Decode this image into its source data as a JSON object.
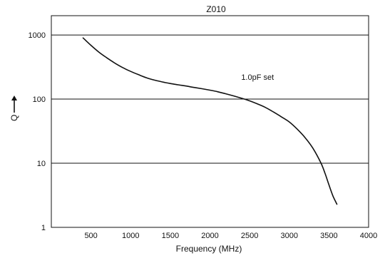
{
  "chart_data": {
    "type": "line",
    "title": "Z010",
    "xlabel": "Frequency (MHz)",
    "ylabel": "Q",
    "xlim": [
      0,
      4000
    ],
    "ylim": [
      1,
      2000
    ],
    "y_scale": "log",
    "grid": "horizontal",
    "x_ticks": [
      {
        "value": 500,
        "label": "500"
      },
      {
        "value": 1000,
        "label": "1000"
      },
      {
        "value": 1500,
        "label": "1500"
      },
      {
        "value": 2000,
        "label": "2000"
      },
      {
        "value": 2500,
        "label": "2500"
      },
      {
        "value": 3000,
        "label": "3000"
      },
      {
        "value": 3500,
        "label": "3500"
      },
      {
        "value": 4000,
        "label": "4000"
      }
    ],
    "y_ticks": [
      {
        "value": 1,
        "label": "1"
      },
      {
        "value": 10,
        "label": "10"
      },
      {
        "value": 100,
        "label": "100"
      },
      {
        "value": 1000,
        "label": "1000"
      }
    ],
    "series": [
      {
        "name": "1.0pF set",
        "color": "#111111",
        "points": [
          [
            400,
            900
          ],
          [
            500,
            690
          ],
          [
            600,
            540
          ],
          [
            700,
            440
          ],
          [
            800,
            365
          ],
          [
            900,
            310
          ],
          [
            1000,
            270
          ],
          [
            1100,
            240
          ],
          [
            1200,
            215
          ],
          [
            1300,
            198
          ],
          [
            1400,
            185
          ],
          [
            1500,
            175
          ],
          [
            1600,
            167
          ],
          [
            1700,
            160
          ],
          [
            1800,
            152
          ],
          [
            1900,
            145
          ],
          [
            2000,
            138
          ],
          [
            2100,
            130
          ],
          [
            2200,
            121
          ],
          [
            2300,
            112
          ],
          [
            2400,
            103
          ],
          [
            2500,
            94
          ],
          [
            2600,
            84
          ],
          [
            2700,
            74
          ],
          [
            2800,
            63
          ],
          [
            2900,
            53
          ],
          [
            3000,
            44
          ],
          [
            3100,
            34
          ],
          [
            3200,
            25
          ],
          [
            3300,
            17
          ],
          [
            3400,
            10
          ],
          [
            3450,
            7
          ],
          [
            3500,
            4.6
          ],
          [
            3550,
            3.1
          ],
          [
            3600,
            2.3
          ]
        ]
      }
    ],
    "annotations": [
      {
        "text": "1.0pF set",
        "x": 2600,
        "y": 200
      }
    ]
  }
}
